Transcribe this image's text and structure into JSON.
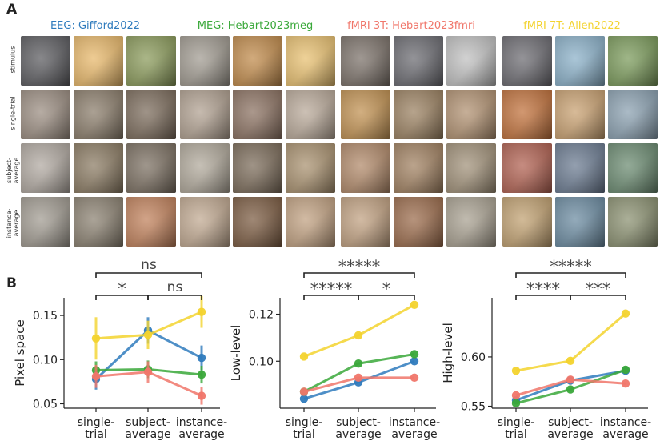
{
  "panel_a": {
    "letter": "A",
    "datasets": [
      {
        "title": "EEG: Gifford2022",
        "color": "#2f7bbd"
      },
      {
        "title": "MEG: Hebart2023meg",
        "color": "#3aa83a"
      },
      {
        "title": "fMRI 3T: Hebart2023fmri",
        "color": "#f0766a"
      },
      {
        "title": "fMRI 7T: Allen2022",
        "color": "#f3d32e"
      }
    ],
    "rows": [
      "stimulus",
      "single-trial",
      "subject-average",
      "instance-average"
    ],
    "tiles": [
      [
        "#5a5a5e",
        "#e8b86a",
        "#8a9a5a",
        "#a09a90",
        "#c08a4a",
        "#e8c070",
        "#7a7068",
        "#6a6a70",
        "#c0c0c0",
        "#6b6a70",
        "#8ab0c8",
        "#7a9a5a"
      ],
      [
        "#9a8c80",
        "#8a7c6a",
        "#7a6a5a",
        "#b0a090",
        "#8a7060",
        "#b8a898",
        "#c09050",
        "#9a8060",
        "#b09070",
        "#c0703a",
        "#c8a070",
        "#8aa0b0"
      ],
      [
        "#b0a8a0",
        "#8a7a62",
        "#7a6e60",
        "#b0a89a",
        "#7a6a58",
        "#a8906e",
        "#b08868",
        "#a08060",
        "#a09078",
        "#b06050",
        "#6a7a90",
        "#6a8a70"
      ],
      [
        "#a09a90",
        "#8a8070",
        "#c0805a",
        "#c0a890",
        "#7a5a40",
        "#c0a080",
        "#c0a080",
        "#9a6a4a",
        "#a8a090",
        "#c0a070",
        "#6a8aa0",
        "#8a9070"
      ]
    ]
  },
  "panel_b": {
    "letter": "B",
    "x_categories": [
      "single-trial",
      "subject-average",
      "instance-average"
    ],
    "x_category_lines": [
      [
        "single-",
        "trial"
      ],
      [
        "subject-",
        "average"
      ],
      [
        "instance-",
        "average"
      ]
    ]
  },
  "chart_data": [
    {
      "type": "line",
      "ylabel": "Pixel space",
      "ylim": [
        0.045,
        0.17
      ],
      "yticks": [
        0.05,
        0.1,
        0.15
      ],
      "yticklabels": [
        "0.05",
        "0.10",
        "0.15"
      ],
      "categories": [
        "single-trial",
        "subject-average",
        "instance-average"
      ],
      "series": [
        {
          "name": "EEG: Gifford2022",
          "color": "#2f7bbd",
          "values": [
            0.078,
            0.133,
            0.102
          ],
          "err": [
            0.012,
            0.015,
            0.014
          ]
        },
        {
          "name": "MEG: Hebart2023meg",
          "color": "#3aa83a",
          "values": [
            0.088,
            0.089,
            0.083
          ],
          "err": [
            0.01,
            0.01,
            0.01
          ]
        },
        {
          "name": "fMRI 3T: Hebart2023fmri",
          "color": "#f0766a",
          "values": [
            0.081,
            0.086,
            0.059
          ],
          "err": [
            0.013,
            0.012,
            0.01
          ]
        },
        {
          "name": "fMRI 7T: Allen2022",
          "color": "#f3d32e",
          "values": [
            0.124,
            0.128,
            0.154
          ],
          "err": [
            0.024,
            0.016,
            0.018
          ]
        }
      ],
      "significance": [
        {
          "from": 0,
          "to": 2,
          "label": "ns",
          "level": 1
        },
        {
          "from": 1,
          "to": 2,
          "label": "ns",
          "level": 0
        },
        {
          "from": 0,
          "to": 1,
          "label": "*",
          "level": 0
        }
      ]
    },
    {
      "type": "line",
      "ylabel": "Low-level",
      "ylim": [
        0.08,
        0.127
      ],
      "yticks": [
        0.1,
        0.12
      ],
      "yticklabels": [
        "0.10",
        "0.12"
      ],
      "categories": [
        "single-trial",
        "subject-average",
        "instance-average"
      ],
      "series": [
        {
          "name": "EEG: Gifford2022",
          "color": "#2f7bbd",
          "values": [
            0.084,
            0.091,
            0.1
          ]
        },
        {
          "name": "MEG: Hebart2023meg",
          "color": "#3aa83a",
          "values": [
            0.087,
            0.099,
            0.103
          ]
        },
        {
          "name": "fMRI 3T: Hebart2023fmri",
          "color": "#f0766a",
          "values": [
            0.087,
            0.093,
            0.093
          ]
        },
        {
          "name": "fMRI 7T: Allen2022",
          "color": "#f3d32e",
          "values": [
            0.102,
            0.111,
            0.124
          ]
        }
      ],
      "significance": [
        {
          "from": 0,
          "to": 2,
          "label": "*****",
          "level": 1
        },
        {
          "from": 1,
          "to": 2,
          "label": "*",
          "level": 0
        },
        {
          "from": 0,
          "to": 1,
          "label": "*****",
          "level": 0
        }
      ]
    },
    {
      "type": "line",
      "ylabel": "High-level",
      "ylim": [
        0.548,
        0.66
      ],
      "yticks": [
        0.55,
        0.6
      ],
      "yticklabels": [
        "0.55",
        "0.60"
      ],
      "categories": [
        "single-trial",
        "subject-average",
        "instance-average"
      ],
      "series": [
        {
          "name": "EEG: Gifford2022",
          "color": "#2f7bbd",
          "values": [
            0.556,
            0.576,
            0.586
          ]
        },
        {
          "name": "MEG: Hebart2023meg",
          "color": "#3aa83a",
          "values": [
            0.553,
            0.567,
            0.587
          ]
        },
        {
          "name": "fMRI 3T: Hebart2023fmri",
          "color": "#f0766a",
          "values": [
            0.561,
            0.577,
            0.573
          ]
        },
        {
          "name": "fMRI 7T: Allen2022",
          "color": "#f3d32e",
          "values": [
            0.586,
            0.596,
            0.644
          ]
        }
      ],
      "significance": [
        {
          "from": 0,
          "to": 2,
          "label": "*****",
          "level": 1
        },
        {
          "from": 1,
          "to": 2,
          "label": "***",
          "level": 0
        },
        {
          "from": 0,
          "to": 1,
          "label": "****",
          "level": 0
        }
      ]
    }
  ]
}
